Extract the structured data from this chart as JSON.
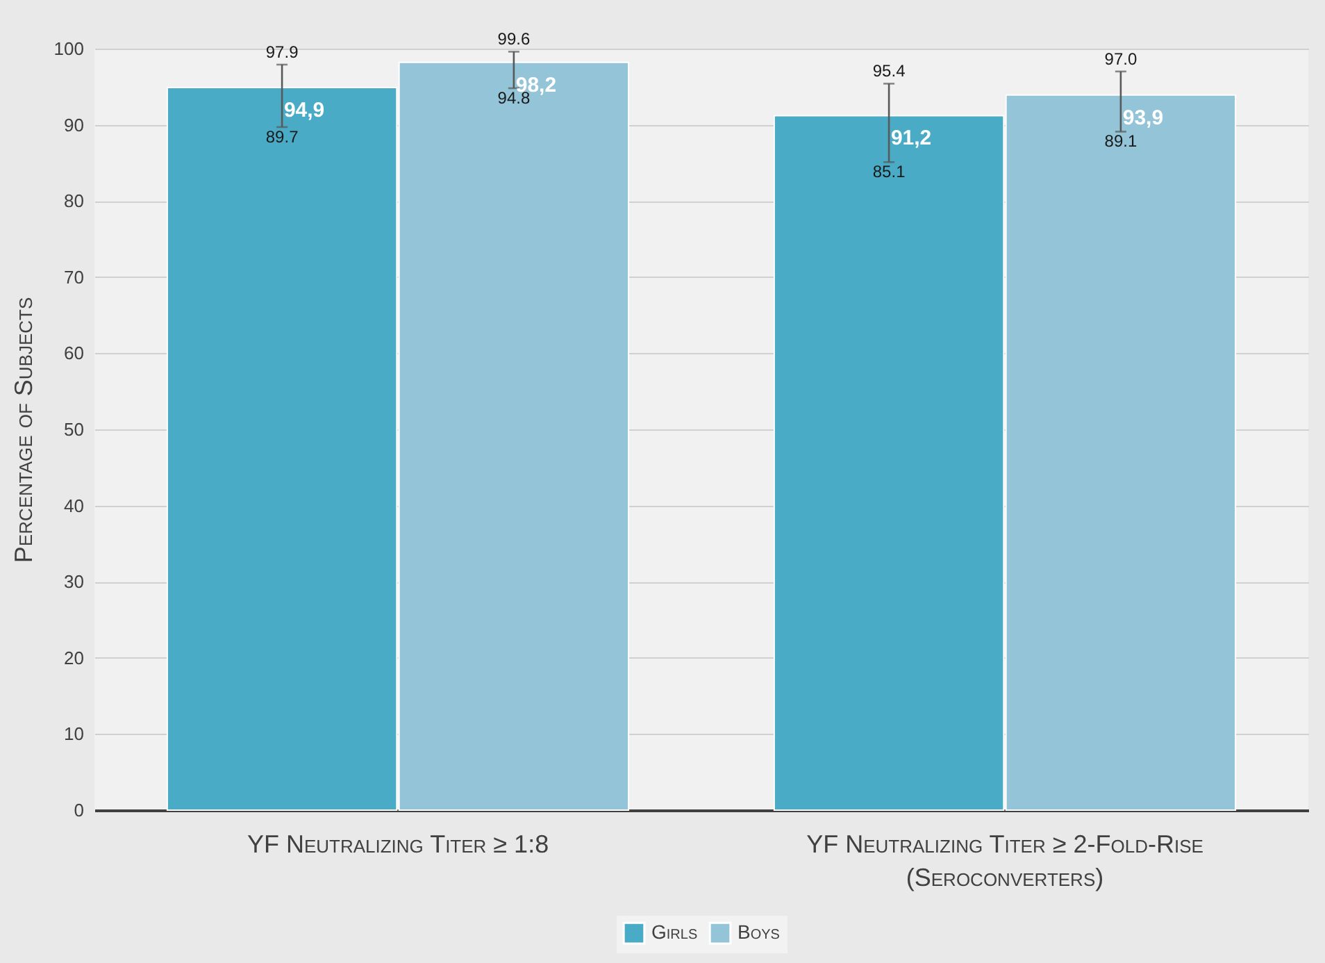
{
  "chart_data": {
    "type": "bar",
    "ylabel": "Percentage of Subjects",
    "categories": [
      "YF Neutralizing Titer  ≥  1:8",
      "YF Neutralizing Titer  ≥ 2-Fold-Rise (Seroconverters)"
    ],
    "series": [
      {
        "name": "Girls",
        "color": "#4aabc6",
        "values": [
          94.9,
          91.2
        ],
        "value_labels": [
          "94,9",
          "91,2"
        ],
        "errors": [
          [
            89.7,
            97.9
          ],
          [
            85.1,
            95.4
          ]
        ]
      },
      {
        "name": "Boys",
        "color": "#93c4d7",
        "values": [
          98.2,
          93.9
        ],
        "value_labels": [
          "98,2",
          "93,9"
        ],
        "errors": [
          [
            94.8,
            99.6
          ],
          [
            89.1,
            97.0
          ]
        ]
      }
    ],
    "ylim": [
      0,
      100
    ],
    "yticks": [
      0,
      10,
      20,
      30,
      40,
      50,
      60,
      70,
      80,
      90,
      100
    ],
    "grid": "y",
    "legend": "bottom",
    "annotations": [
      "97.9",
      "89.7",
      "99.6",
      "94.8",
      "95.4",
      "85.1",
      "97.0",
      "89.1"
    ]
  }
}
